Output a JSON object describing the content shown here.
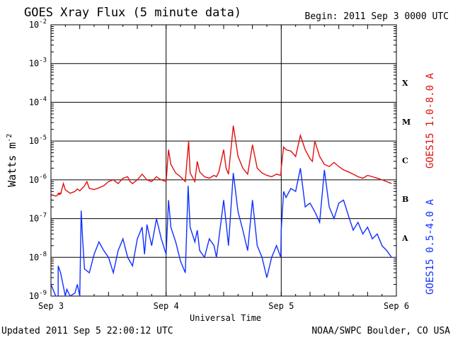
{
  "header": {
    "title": "GOES Xray Flux (5 minute data)",
    "begin": "Begin:  2011 Sep 3 0000 UTC"
  },
  "footer": {
    "updated": "Updated 2011 Sep  5 22:00:12 UTC",
    "credit": "NOAA/SWPC Boulder, CO USA"
  },
  "colors": {
    "long": "#e01010",
    "short": "#1030ff",
    "grid": "#000000"
  },
  "chart_data": {
    "type": "line",
    "title": "GOES Xray Flux (5 minute data)",
    "xlabel": "Universal Time",
    "ylabel": "Watts m",
    "ylabel_sup": "-2",
    "yscale": "log",
    "ylim": [
      1e-09,
      0.01
    ],
    "xlim": [
      0,
      72
    ],
    "x_units": "hours since 2011 Sep 3 0000 UTC",
    "x_ticks": [
      {
        "x": 0,
        "label": "Sep 3"
      },
      {
        "x": 24,
        "label": "Sep 4"
      },
      {
        "x": 48,
        "label": "Sep 5"
      },
      {
        "x": 72,
        "label": "Sep 6"
      }
    ],
    "y_ticks": [
      {
        "exp": -9,
        "label": "10",
        "sup": "-9"
      },
      {
        "exp": -8,
        "label": "10",
        "sup": "-8"
      },
      {
        "exp": -7,
        "label": "10",
        "sup": "-7"
      },
      {
        "exp": -6,
        "label": "10",
        "sup": "-6"
      },
      {
        "exp": -5,
        "label": "10",
        "sup": "-5"
      },
      {
        "exp": -4,
        "label": "10",
        "sup": "-4"
      },
      {
        "exp": -3,
        "label": "10",
        "sup": "-3"
      },
      {
        "exp": -2,
        "label": "10",
        "sup": "-2"
      }
    ],
    "flare_classes": [
      {
        "label": "A",
        "exp": -7.5
      },
      {
        "label": "B",
        "exp": -6.5
      },
      {
        "label": "C",
        "exp": -5.5
      },
      {
        "label": "M",
        "exp": -4.5
      },
      {
        "label": "X",
        "exp": -3.5
      }
    ],
    "grid": true,
    "series": [
      {
        "name": "GOES15 1.0-8.0 A",
        "color": "#e01010",
        "x": [
          0,
          1,
          2,
          1.5,
          1.5,
          2,
          2.6,
          3,
          4,
          5,
          5.5,
          6,
          7,
          7.5,
          8,
          9,
          10,
          11,
          12,
          13,
          14,
          15,
          16,
          16.5,
          17,
          18,
          19,
          20,
          21,
          22,
          22.4,
          23,
          24,
          24.5,
          25,
          26,
          27,
          28,
          28.7,
          29,
          30,
          30.5,
          31,
          32,
          33,
          34,
          34.5,
          35,
          36,
          36.5,
          37,
          38,
          39,
          40,
          41,
          42,
          43,
          44,
          45,
          46,
          47,
          47.9,
          48,
          48.5,
          49,
          50,
          51,
          52,
          53,
          54,
          54.5,
          55,
          56,
          57,
          58,
          59,
          60,
          61,
          62,
          63,
          64,
          65,
          66,
          67,
          68,
          69,
          70,
          71
        ],
        "values": [
          4.2e-07,
          3.8e-07,
          4.5e-07,
          4.5e-07,
          4.2e-07,
          4.3e-07,
          8e-07,
          5.5e-07,
          4.5e-07,
          5e-07,
          5.8e-07,
          5.2e-07,
          7e-07,
          9e-07,
          6e-07,
          5.6e-07,
          6.2e-07,
          7e-07,
          9e-07,
          1e-06,
          8e-07,
          1.1e-06,
          1.2e-06,
          9e-07,
          8e-07,
          1e-06,
          1.4e-06,
          1e-06,
          9e-07,
          1.2e-06,
          1.1e-06,
          1e-06,
          9e-07,
          6e-06,
          2.5e-06,
          1.5e-06,
          1.2e-06,
          9e-07,
          1e-05,
          1.5e-06,
          9e-07,
          3e-06,
          1.6e-06,
          1.2e-06,
          1.1e-06,
          1.3e-06,
          1.2e-06,
          1.6e-06,
          6e-06,
          2e-06,
          1.4e-06,
          2.5e-05,
          4e-06,
          2e-06,
          1.4e-06,
          8e-06,
          2e-06,
          1.5e-06,
          1.3e-06,
          1.2e-06,
          1.4e-06,
          1.3e-06,
          2e-06,
          7e-06,
          6e-06,
          5.5e-06,
          4e-06,
          1.4e-05,
          6e-06,
          3.5e-06,
          3e-06,
          1e-05,
          4e-06,
          2.5e-06,
          2.2e-06,
          2.8e-06,
          2.2e-06,
          1.8e-06,
          1.6e-06,
          1.4e-06,
          1.2e-06,
          1.1e-06,
          1.3e-06,
          1.2e-06,
          1.1e-06,
          1e-06,
          9e-07,
          8e-07
        ]
      },
      {
        "name": "GOES15 0.5-4.0 A",
        "color": "#1030ff",
        "x": [
          0,
          1,
          1.5,
          1.5,
          2,
          3,
          3.3,
          4,
          5,
          5.5,
          6,
          6.3,
          6.6,
          7,
          8,
          9,
          10,
          11,
          12,
          13,
          14,
          15,
          16,
          17,
          18,
          19,
          19.5,
          20,
          21,
          22,
          23,
          24,
          24.5,
          25,
          26,
          27,
          28,
          28.6,
          29,
          30,
          30.5,
          31,
          32,
          33,
          34,
          34.5,
          35,
          36,
          36.5,
          37,
          38,
          39,
          40,
          41,
          42,
          43,
          44,
          45,
          46,
          47,
          47.9,
          48,
          48.5,
          49,
          50,
          51,
          52,
          53,
          54,
          55,
          56,
          57,
          58,
          59,
          60,
          61,
          62,
          63,
          64,
          65,
          66,
          67,
          68,
          69,
          70,
          71
        ],
        "values": [
          2e-09,
          1e-09,
          1e-09,
          6e-09,
          4e-09,
          1e-09,
          1.5e-09,
          1e-09,
          1.2e-09,
          2e-09,
          1e-09,
          1.6e-07,
          3e-08,
          5e-09,
          4e-09,
          1.2e-08,
          2.5e-08,
          1.5e-08,
          1e-08,
          4e-09,
          1.5e-08,
          3e-08,
          1e-08,
          6e-09,
          3e-08,
          6e-08,
          1.2e-08,
          7e-08,
          2e-08,
          1e-07,
          3e-08,
          1.2e-08,
          3e-07,
          6e-08,
          2.5e-08,
          8e-09,
          4e-09,
          7e-07,
          6e-08,
          2.5e-08,
          5e-08,
          1.5e-08,
          1e-08,
          3e-08,
          2e-08,
          1e-08,
          3e-08,
          3e-07,
          8e-08,
          2e-08,
          1.5e-06,
          1.5e-07,
          5e-08,
          1.5e-08,
          3e-07,
          2e-08,
          1e-08,
          3e-09,
          1e-08,
          2e-08,
          1e-08,
          5e-08,
          5e-07,
          3.5e-07,
          6e-07,
          5e-07,
          2e-06,
          2e-07,
          2.5e-07,
          1.5e-07,
          8e-08,
          1.8e-06,
          2e-07,
          1e-07,
          2.5e-07,
          3e-07,
          1.2e-07,
          5e-08,
          8e-08,
          4e-08,
          6e-08,
          3e-08,
          4e-08,
          2e-08,
          1.5e-08,
          1e-08
        ]
      }
    ]
  }
}
